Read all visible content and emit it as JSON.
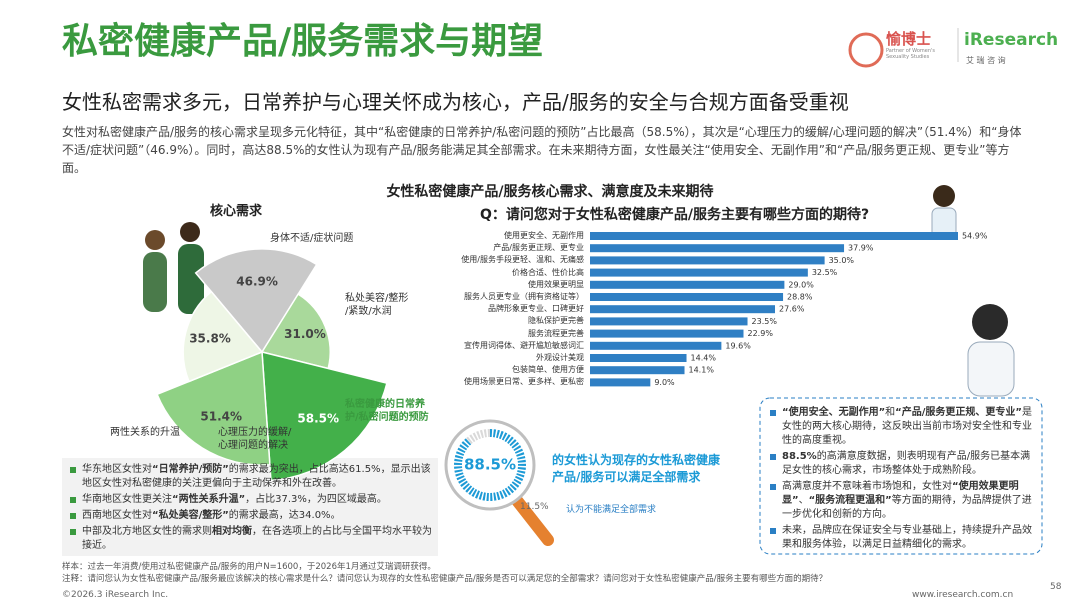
{
  "header": {
    "title": "私密健康产品/服务需求与期望",
    "subtitle": "女性私密需求多元，日常养护与心理关怀成为核心，产品/服务的安全与合规方面备受重视",
    "logo": {
      "brand": "愉博士",
      "tagline": "Partner of Women's\nSexuality Studies",
      "company": "iResearch",
      "company_cn": "艾 瑞 咨 询"
    }
  },
  "summary": "女性对私密健康产品/服务的核心需求呈现多元化特征，其中“私密健康的日常养护/私密问题的预防”占比最高（58.5%），其次是“心理压力的缓解/心理问题的解决”（51.4%）和“身体不适/症状问题”（46.9%）。同时，高达88.5%的女性认为现有产品/服务能满足其全部需求。在未来期待方面，女性最关注“使用安全、无副作用”和“产品/服务更正规、更专业”等方面。",
  "section_title": "女性私密健康产品/服务核心需求、满意度及未来期待",
  "chart_data": [
    {
      "type": "pie",
      "title": "核心需求",
      "categories": [
        "身体不适/症状问题",
        "私处美容/整形\n/紧致/水润",
        "私密健康的日常养\n护/私密问题的预防",
        "心理压力的缓解/\n心理问题的解决",
        "两性关系的升温"
      ],
      "values": [
        46.9,
        31.0,
        58.5,
        51.4,
        35.8
      ],
      "value_labels": [
        "46.9%",
        "31.0%",
        "58.5%",
        "51.4%",
        "35.8%"
      ],
      "colors": [
        "#c9c9c9",
        "#a9d99b",
        "#43b04a",
        "#8fd184",
        "#eef6e6"
      ]
    },
    {
      "type": "bar",
      "title": "Q：请问您对于女性私密健康产品/服务主要有哪些方面的期待?",
      "categories": [
        "使用更安全、无副作用",
        "产品/服务更正规、更专业",
        "使用/服务手段更轻、温和、无痛感",
        "价格合适、性价比高",
        "使用效果更明显",
        "服务人员更专业（拥有资格证等）",
        "品牌形象更专业、口碑更好",
        "隐私保护更完善",
        "服务流程更完善",
        "宣传用词得体、避开尴尬敏感词汇",
        "外观设计美观",
        "包装简单、使用方便",
        "使用场景更日常、更多样、更私密"
      ],
      "values": [
        54.9,
        37.9,
        35.0,
        32.5,
        29.0,
        28.8,
        27.6,
        23.5,
        22.9,
        19.6,
        14.4,
        14.1,
        9.0
      ],
      "value_labels": [
        "54.9%",
        "37.9%",
        "35.0%",
        "32.5%",
        "29.0%",
        "28.8%",
        "27.6%",
        "23.5%",
        "22.9%",
        "19.6%",
        "14.4%",
        "14.1%",
        "9.0%"
      ],
      "color": "#2f7fc4"
    },
    {
      "type": "donut",
      "categories": [
        "的女性认为现存的女性私密健康\n产品/服务可以满足全部需求",
        "认为不能满足全部需求"
      ],
      "values": [
        88.5,
        11.5
      ],
      "value_labels": [
        "88.5%",
        "11.5%"
      ],
      "colors": [
        "#1c9ad6",
        "#d9d9d9"
      ]
    }
  ],
  "regional_notes": [
    [
      "华东地区女性对",
      {
        "text": "“日常养护/预防”",
        "bold": true
      },
      "的需求最为突出，占比高达61.5%，显示出该地区女性对私密健康的关注更偏向于主动保养和外在改善。"
    ],
    [
      "华南地区女性更关注",
      {
        "text": "“两性关系升温”",
        "bold": true
      },
      "，占比37.3%，为四区域最高。"
    ],
    [
      "西南地区女性对",
      {
        "text": "“私处美容/整形”",
        "bold": true
      },
      "的需求最高，达34.0%。"
    ],
    [
      "中部及北方地区女性的需求则",
      {
        "text": "相对均衡",
        "bold": true
      },
      "，在各选项上的占比与全国平均水平较为接近。"
    ]
  ],
  "insights": [
    [
      {
        "text": "“使用安全、无副作用”",
        "bold": true
      },
      "和",
      {
        "text": "“产品/服务更正规、更专业”",
        "bold": true
      },
      "是女性的两大核心期待，这反映出当前市场对安全性和专业性的高度重视。"
    ],
    [
      {
        "text": "88.5%",
        "bold": true
      },
      "的高满意度数据，则表明现有产品/服务已基本满足女性的核心需求，市场整体处于成熟阶段。"
    ],
    [
      "高满意度并不意味着市场饱和，女性对",
      {
        "text": "“使用效果更明显”",
        "bold": true
      },
      "、",
      {
        "text": "“服务流程更温和”",
        "bold": true
      },
      "等方面的期待，为品牌提供了进一步优化和创新的方向。"
    ],
    [
      "未来，品牌应在保证安全与专业基础上，持续提升产品效果和服务体验，以满足日益精细化的需求。"
    ]
  ],
  "footer": {
    "sample": "样本：过去一年消费/使用过私密健康产品/服务的用户N=1600，于2026年1月通过艾瑞调研获得。",
    "note": "注释：请问您认为女性私密健康产品/服务最应该解决的核心需求是什么？请问您认为现存的女性私密健康产品/服务是否可以满足您的全部需求？请问您对于女性私密健康产品/服务主要有哪些方面的期待？",
    "copyright": "©2026.3 iResearch Inc.",
    "website": "www.iresearch.com.cn",
    "page": 58
  }
}
